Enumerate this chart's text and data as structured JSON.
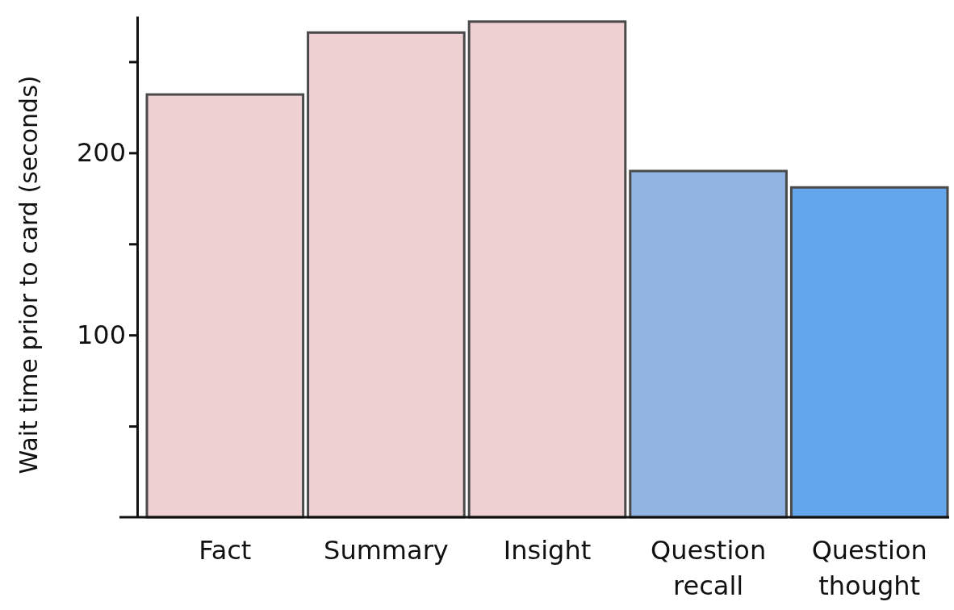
{
  "chart_data": {
    "type": "bar",
    "ylabel": "Wait time prior to card (seconds)",
    "categories": [
      "Fact",
      "Summary",
      "Insight",
      "Question recall",
      "Question thought"
    ],
    "values": [
      232,
      266,
      272,
      190,
      181
    ],
    "colors": [
      "#efd0d3",
      "#efd0d3",
      "#efd0d3",
      "#92b4e3",
      "#64a6ec"
    ],
    "ylim": [
      0,
      275
    ],
    "yticks": [
      {
        "value": 50,
        "label": null
      },
      100,
      {
        "value": 150,
        "label": null
      },
      200,
      {
        "value": 250,
        "label": null
      }
    ],
    "grid": false
  }
}
